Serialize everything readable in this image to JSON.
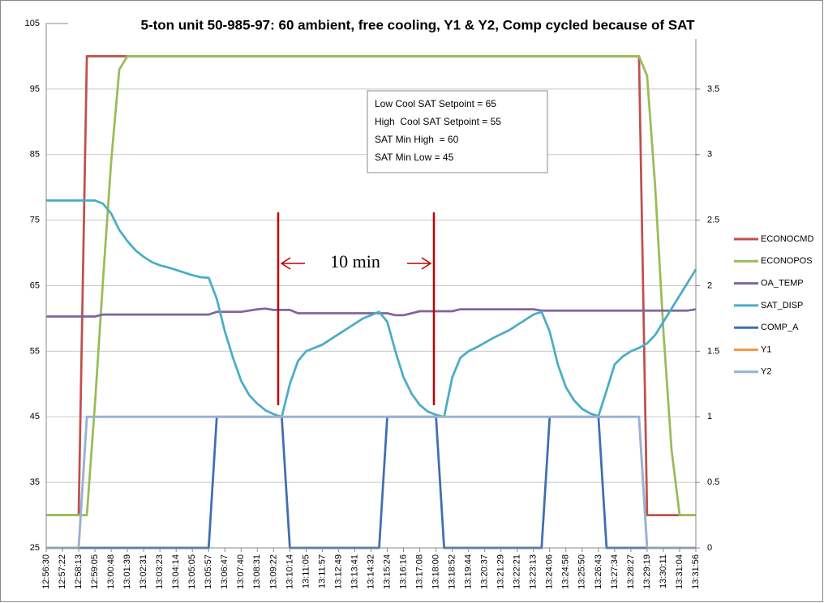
{
  "chart_data": {
    "type": "line",
    "title": "5-ton unit 50-985-97: 60 ambient, free cooling, Y1 & Y2, Comp cycled because of SAT",
    "categories": [
      "12:56:30",
      null,
      "12:57:22",
      null,
      "12:58:13",
      null,
      "12:59:05",
      null,
      "13:00:48",
      null,
      "13:01:39",
      null,
      "13:02:31",
      null,
      "13:03:23",
      null,
      "13:04:14",
      null,
      "13:05:05",
      null,
      "13:05:57",
      null,
      "13:06:47",
      null,
      "13:07:40",
      null,
      "13:08:31",
      null,
      "13:09:22",
      null,
      "13:10:14",
      null,
      "13:11:05",
      null,
      "13:11:57",
      null,
      "13:12:49",
      null,
      "13:13:41",
      null,
      "13:14:32",
      null,
      "13:15:24",
      null,
      "13:16:16",
      null,
      "13:17:08",
      null,
      "13:18:00",
      null,
      "13:18:52",
      null,
      "13:19:44",
      null,
      "13:20:37",
      null,
      "13:21:29",
      null,
      "13:22:21",
      null,
      "13:23:13",
      null,
      "13:24:06",
      null,
      "13:24:58",
      null,
      "13:25:50",
      null,
      "13:26:43",
      null,
      "13:27:34",
      null,
      "13:28:27",
      null,
      "13:29:19",
      null,
      "13:30:11",
      null,
      "13:31:04",
      null,
      "13:31:56"
    ],
    "series": [
      {
        "name": "ECONOCMD",
        "color": "#c0504d",
        "values": [
          30,
          30,
          30,
          30,
          30,
          100,
          100,
          100,
          100,
          100,
          100,
          100,
          100,
          100,
          100,
          100,
          100,
          100,
          100,
          100,
          100,
          100,
          100,
          100,
          100,
          100,
          100,
          100,
          100,
          100,
          100,
          100,
          100,
          100,
          100,
          100,
          100,
          100,
          100,
          100,
          100,
          100,
          100,
          100,
          100,
          100,
          100,
          100,
          100,
          100,
          100,
          100,
          100,
          100,
          100,
          100,
          100,
          100,
          100,
          100,
          100,
          100,
          100,
          100,
          100,
          100,
          100,
          100,
          100,
          100,
          100,
          100,
          100,
          100,
          30,
          30,
          30,
          30,
          30,
          30,
          30
        ]
      },
      {
        "name": "ECONOPOS",
        "color": "#9bbb59",
        "values": [
          30,
          30,
          30,
          30,
          30,
          30,
          47,
          66,
          84,
          98,
          100,
          100,
          100,
          100,
          100,
          100,
          100,
          100,
          100,
          100,
          100,
          100,
          100,
          100,
          100,
          100,
          100,
          100,
          100,
          100,
          100,
          100,
          100,
          100,
          100,
          100,
          100,
          100,
          100,
          100,
          100,
          100,
          100,
          100,
          100,
          100,
          100,
          100,
          100,
          100,
          100,
          100,
          100,
          100,
          100,
          100,
          100,
          100,
          100,
          100,
          100,
          100,
          100,
          100,
          100,
          100,
          100,
          100,
          100,
          100,
          100,
          100,
          100,
          100,
          97,
          80,
          58,
          40,
          30,
          30,
          30
        ]
      },
      {
        "name": "OA_TEMP",
        "color": "#8064a2",
        "values": [
          60.3,
          60.3,
          60.3,
          60.3,
          60.3,
          60.3,
          60.3,
          60.6,
          60.6,
          60.6,
          60.6,
          60.6,
          60.6,
          60.6,
          60.6,
          60.6,
          60.6,
          60.6,
          60.6,
          60.6,
          60.6,
          61,
          61,
          61,
          61,
          61.2,
          61.4,
          61.5,
          61.3,
          61.3,
          61.3,
          60.8,
          60.8,
          60.8,
          60.8,
          60.8,
          60.8,
          60.8,
          60.8,
          60.8,
          60.8,
          60.8,
          60.8,
          60.5,
          60.5,
          60.8,
          61.1,
          61.1,
          61.1,
          61.1,
          61.1,
          61.4,
          61.4,
          61.4,
          61.4,
          61.4,
          61.4,
          61.4,
          61.4,
          61.4,
          61.4,
          61.2,
          61.2,
          61.2,
          61.2,
          61.2,
          61.2,
          61.2,
          61.2,
          61.2,
          61.2,
          61.2,
          61.2,
          61.2,
          61.2,
          61.2,
          61.2,
          61.2,
          61.2,
          61.2,
          61.4
        ]
      },
      {
        "name": "SAT_DISP",
        "color": "#4bacc6",
        "values": [
          78,
          78,
          78,
          78,
          78,
          78,
          78,
          77.5,
          76,
          73.5,
          71.8,
          70.4,
          69.4,
          68.6,
          68.1,
          67.8,
          67.4,
          67,
          66.6,
          66.3,
          66.2,
          63,
          58,
          54,
          50.5,
          48.3,
          47,
          46,
          45.4,
          45,
          50,
          53.5,
          55,
          55.5,
          56,
          56.8,
          57.6,
          58.4,
          59.2,
          60,
          60.5,
          61,
          59.5,
          55,
          51,
          48.5,
          46.8,
          45.8,
          45.3,
          45,
          51,
          54,
          55,
          55.6,
          56.3,
          57,
          57.6,
          58.2,
          59,
          59.8,
          60.6,
          61,
          58,
          53,
          49.5,
          47.5,
          46.2,
          45.5,
          45.1,
          49,
          53,
          54.2,
          55,
          55.5,
          56.2,
          57.5,
          59.5,
          61.5,
          63.5,
          65.5,
          67.5
        ]
      },
      {
        "name": "COMP_A",
        "color": "#3f6fb0",
        "axis": "y2",
        "values": [
          0,
          0,
          0,
          0,
          0,
          0,
          0,
          0,
          0,
          0,
          0,
          0,
          0,
          0,
          0,
          0,
          0,
          0,
          0,
          0,
          0,
          1,
          1,
          1,
          1,
          1,
          1,
          1,
          1,
          1,
          0,
          0,
          0,
          0,
          0,
          0,
          0,
          0,
          0,
          0,
          0,
          0,
          1,
          1,
          1,
          1,
          1,
          1,
          1,
          0,
          0,
          0,
          0,
          0,
          0,
          0,
          0,
          0,
          0,
          0,
          0,
          0,
          1,
          1,
          1,
          1,
          1,
          1,
          1,
          0,
          0,
          0,
          0,
          0,
          0,
          0,
          0,
          0,
          0,
          0,
          0
        ]
      },
      {
        "name": "Y1",
        "color": "#f79646",
        "axis": "y2",
        "values": [
          0,
          0,
          0,
          0,
          0,
          1,
          1,
          1,
          1,
          1,
          1,
          1,
          1,
          1,
          1,
          1,
          1,
          1,
          1,
          1,
          1,
          1,
          1,
          1,
          1,
          1,
          1,
          1,
          1,
          1,
          1,
          1,
          1,
          1,
          1,
          1,
          1,
          1,
          1,
          1,
          1,
          1,
          1,
          1,
          1,
          1,
          1,
          1,
          1,
          1,
          1,
          1,
          1,
          1,
          1,
          1,
          1,
          1,
          1,
          1,
          1,
          1,
          1,
          1,
          1,
          1,
          1,
          1,
          1,
          1,
          1,
          1,
          1,
          1,
          0,
          0,
          0,
          0,
          0,
          0,
          0
        ]
      },
      {
        "name": "Y2",
        "color": "#95b3d7",
        "axis": "y2",
        "values": [
          0,
          0,
          0,
          0,
          0,
          1,
          1,
          1,
          1,
          1,
          1,
          1,
          1,
          1,
          1,
          1,
          1,
          1,
          1,
          1,
          1,
          1,
          1,
          1,
          1,
          1,
          1,
          1,
          1,
          1,
          1,
          1,
          1,
          1,
          1,
          1,
          1,
          1,
          1,
          1,
          1,
          1,
          1,
          1,
          1,
          1,
          1,
          1,
          1,
          1,
          1,
          1,
          1,
          1,
          1,
          1,
          1,
          1,
          1,
          1,
          1,
          1,
          1,
          1,
          1,
          1,
          1,
          1,
          1,
          1,
          1,
          1,
          1,
          1,
          0,
          0,
          0,
          0,
          0,
          0,
          0
        ]
      }
    ],
    "ylim": [
      25,
      105
    ],
    "yticks": [
      25,
      35,
      45,
      55,
      65,
      75,
      85,
      95,
      105
    ],
    "y2lim": [
      0,
      4
    ],
    "y2ticks": [
      0,
      0.5,
      1,
      1.5,
      2,
      2.5,
      3,
      3.5
    ],
    "grid": true,
    "legend": "right",
    "annotations": [
      "Low Cool SAT Setpoint = 65",
      "High  Cool SAT Setpoint = 55",
      "SAT Min High  = 60",
      "SAT Min Low = 45"
    ],
    "interval_label": "10 min"
  }
}
